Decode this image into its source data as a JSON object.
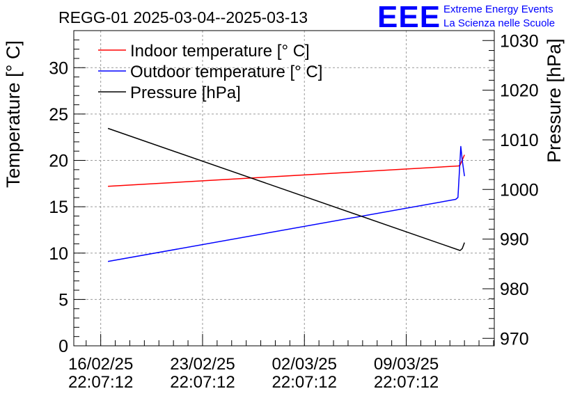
{
  "chart_data": {
    "type": "line",
    "title": "REGG-01 2025-03-04--2025-03-13",
    "ylabel": "Temperature [° C]",
    "y2label": "Pressure [hPa]",
    "ylim": [
      0,
      34
    ],
    "y2lim": [
      968.5,
      1032
    ],
    "x_ticks": [
      {
        "date": "16/02/25",
        "time": "22:07:12",
        "day": 0
      },
      {
        "date": "23/02/25",
        "time": "22:07:12",
        "day": 7
      },
      {
        "date": "02/03/25",
        "time": "22:07:12",
        "day": 14
      },
      {
        "date": "09/03/25",
        "time": "22:07:12",
        "day": 21
      }
    ],
    "xlim_days": [
      -1.85,
      27.05
    ],
    "y_ticks": [
      0,
      5,
      10,
      15,
      20,
      25,
      30
    ],
    "y2_ticks": [
      970,
      980,
      990,
      1000,
      1010,
      1020,
      1030
    ],
    "grid": true,
    "legend_position": "top-left",
    "series": [
      {
        "name": "Indoor temperature [° C]",
        "axis": "left",
        "color": "#ff0000",
        "x": [
          0.5,
          24.6,
          24.7,
          25.0
        ],
        "y": [
          17.2,
          19.4,
          19.5,
          20.6
        ]
      },
      {
        "name": "Outdoor temperature [° C]",
        "axis": "left",
        "color": "#0000ff",
        "x": [
          0.5,
          24.4,
          24.55,
          24.75,
          24.85,
          25.0
        ],
        "y": [
          9.1,
          15.8,
          16.0,
          21.5,
          20.0,
          18.3
        ]
      },
      {
        "name": "Pressure [hPa]",
        "axis": "right",
        "color": "#000000",
        "x": [
          0.5,
          24.7,
          24.85,
          25.0
        ],
        "y": [
          1012.3,
          987.7,
          988.1,
          989.3
        ]
      }
    ]
  },
  "logo": {
    "mark": "EEE",
    "line1": "Extreme Energy Events",
    "line2": "La Scienza nelle Scuole",
    "color": "#0000ff"
  }
}
